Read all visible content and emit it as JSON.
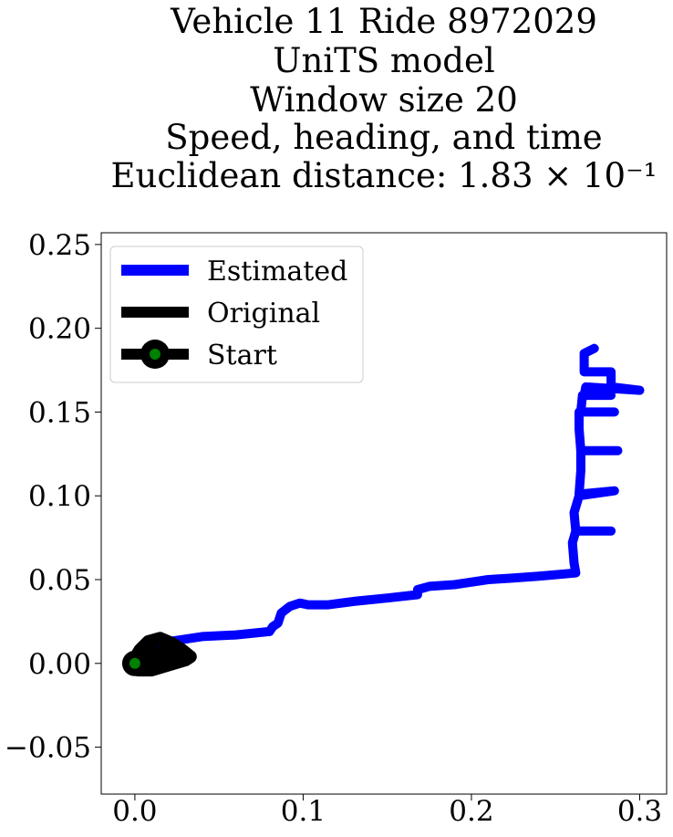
{
  "chart_data": {
    "type": "line",
    "title_lines": [
      "Vehicle 11 Ride 8972029",
      "UniTS model",
      "Window size 20",
      "Speed, heading, and time",
      "Euclidean distance: 1.83 × 10⁻¹"
    ],
    "xlabel": "",
    "ylabel": "",
    "xlim": [
      -0.02,
      0.316
    ],
    "ylim": [
      -0.078,
      0.257
    ],
    "xticks": [
      0.0,
      0.1,
      0.2,
      0.3
    ],
    "xtick_labels": [
      "0.0",
      "0.1",
      "0.2",
      "0.3"
    ],
    "yticks": [
      -0.05,
      0.0,
      0.05,
      0.1,
      0.15,
      0.2,
      0.25
    ],
    "ytick_labels": [
      "−0.05",
      "0.00",
      "0.05",
      "0.10",
      "0.15",
      "0.20",
      "0.25"
    ],
    "grid": false,
    "legend_position": "upper-left",
    "legend": [
      {
        "label": "Estimated",
        "color": "#0000ff",
        "marker": "none"
      },
      {
        "label": "Original",
        "color": "#000000",
        "marker": "none"
      },
      {
        "label": "Start",
        "color": "#000000",
        "marker": "circle",
        "marker_face": "#008000"
      }
    ],
    "series": [
      {
        "name": "Estimated",
        "color": "#0000ff",
        "points": [
          [
            0.01,
            0.005
          ],
          [
            0.015,
            0.01
          ],
          [
            0.02,
            0.013
          ],
          [
            0.04,
            0.016
          ],
          [
            0.06,
            0.017
          ],
          [
            0.08,
            0.019
          ],
          [
            0.082,
            0.022
          ],
          [
            0.085,
            0.024
          ],
          [
            0.087,
            0.03
          ],
          [
            0.092,
            0.034
          ],
          [
            0.098,
            0.036
          ],
          [
            0.103,
            0.035
          ],
          [
            0.115,
            0.035
          ],
          [
            0.13,
            0.037
          ],
          [
            0.15,
            0.039
          ],
          [
            0.168,
            0.041
          ],
          [
            0.168,
            0.044
          ],
          [
            0.175,
            0.046
          ],
          [
            0.19,
            0.047
          ],
          [
            0.21,
            0.05
          ],
          [
            0.225,
            0.051
          ],
          [
            0.24,
            0.052
          ],
          [
            0.262,
            0.054
          ],
          [
            0.261,
            0.06
          ],
          [
            0.26,
            0.072
          ],
          [
            0.262,
            0.079
          ],
          [
            0.283,
            0.079
          ],
          [
            0.262,
            0.079
          ],
          [
            0.261,
            0.09
          ],
          [
            0.264,
            0.1
          ],
          [
            0.285,
            0.103
          ],
          [
            0.264,
            0.101
          ],
          [
            0.265,
            0.115
          ],
          [
            0.265,
            0.127
          ],
          [
            0.287,
            0.127
          ],
          [
            0.265,
            0.127
          ],
          [
            0.264,
            0.14
          ],
          [
            0.264,
            0.15
          ],
          [
            0.285,
            0.15
          ],
          [
            0.265,
            0.15
          ],
          [
            0.266,
            0.16
          ],
          [
            0.283,
            0.16
          ],
          [
            0.267,
            0.16
          ],
          [
            0.268,
            0.165
          ],
          [
            0.3,
            0.163
          ],
          [
            0.283,
            0.165
          ],
          [
            0.283,
            0.174
          ],
          [
            0.267,
            0.174
          ],
          [
            0.267,
            0.185
          ],
          [
            0.273,
            0.188
          ]
        ]
      },
      {
        "name": "Original",
        "color": "#000000",
        "points": [
          [
            0.0,
            0.0
          ],
          [
            0.002,
            -0.004
          ],
          [
            0.01,
            -0.004
          ],
          [
            0.02,
            -0.001
          ],
          [
            0.03,
            0.002
          ],
          [
            0.033,
            0.004
          ],
          [
            0.028,
            0.008
          ],
          [
            0.022,
            0.012
          ],
          [
            0.015,
            0.015
          ],
          [
            0.008,
            0.013
          ],
          [
            0.003,
            0.008
          ],
          [
            0.0,
            0.003
          ],
          [
            0.0,
            0.0
          ],
          [
            0.004,
            0.004
          ],
          [
            0.012,
            0.007
          ],
          [
            0.024,
            0.006
          ],
          [
            0.03,
            0.003
          ],
          [
            0.018,
            0.001
          ],
          [
            0.008,
            0.001
          ],
          [
            0.002,
            -0.002
          ]
        ]
      }
    ],
    "start": {
      "x": 0.0,
      "y": 0.0,
      "color": "#008000"
    }
  }
}
